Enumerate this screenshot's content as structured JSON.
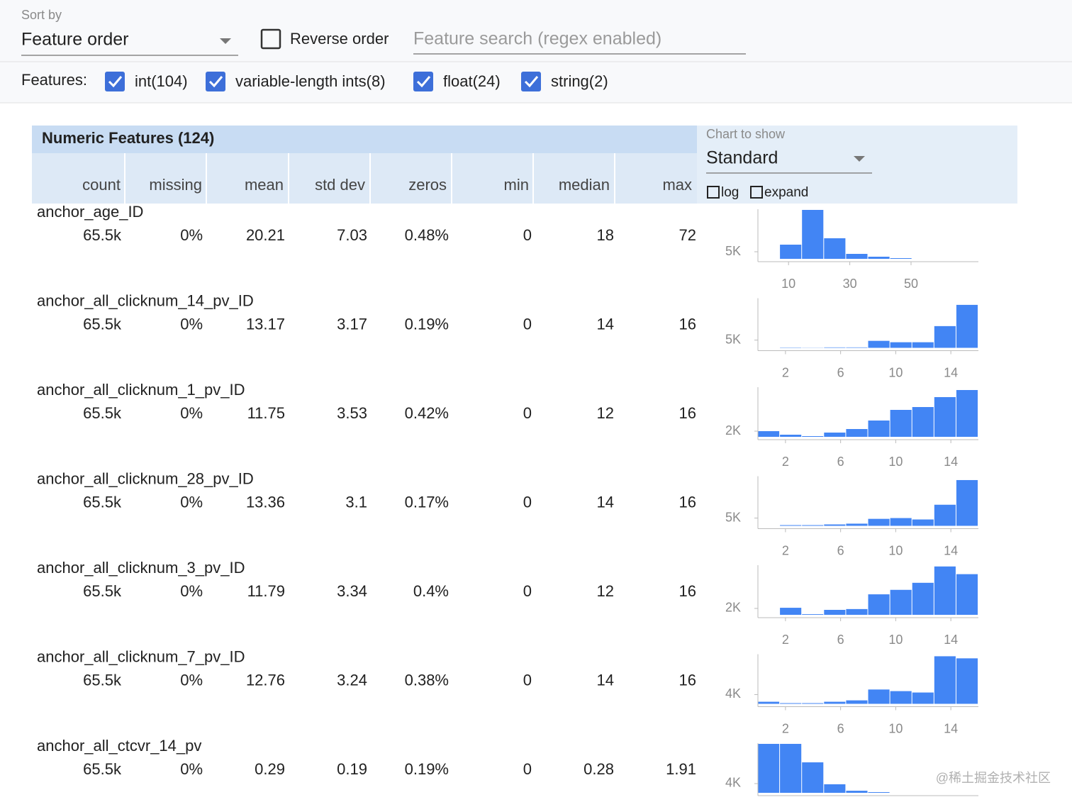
{
  "sort": {
    "label": "Sort by",
    "value": "Feature order"
  },
  "reverse_order": "Reverse order",
  "search_placeholder": "Feature search (regex enabled)",
  "features_label": "Features:",
  "feature_filters": [
    "int(104)",
    "variable-length ints(8)",
    "float(24)",
    "string(2)"
  ],
  "table": {
    "title": "Numeric Features (124)",
    "columns": [
      "count",
      "missing",
      "mean",
      "std dev",
      "zeros",
      "min",
      "median",
      "max"
    ],
    "chart_control": {
      "label": "Chart to show",
      "value": "Standard",
      "options": [
        "log",
        "expand"
      ]
    },
    "rows": [
      {
        "name": "anchor_age_ID",
        "stats": [
          "65.5k",
          "0%",
          "20.21",
          "7.03",
          "0.48%",
          "0",
          "18",
          "72"
        ],
        "histogram": {
          "type": "histogram",
          "xlim": [
            0,
            72
          ],
          "xticks": [
            10,
            30,
            50
          ],
          "ylim": [
            0,
            35000
          ],
          "yticks": [
            {
              "value": 5000,
              "label": "5K"
            }
          ],
          "counts": [
            0,
            10000,
            34500,
            14500,
            3500,
            1500,
            500,
            0,
            0,
            0
          ]
        }
      },
      {
        "name": "anchor_all_clicknum_14_pv_ID",
        "stats": [
          "65.5k",
          "0%",
          "13.17",
          "3.17",
          "0.19%",
          "0",
          "14",
          "16"
        ],
        "histogram": {
          "type": "histogram",
          "xlim": [
            0,
            16
          ],
          "xticks": [
            2,
            6,
            10,
            14
          ],
          "ylim": [
            0,
            32000
          ],
          "yticks": [
            {
              "value": 5000,
              "label": "5K"
            }
          ],
          "counts": [
            0,
            200,
            100,
            300,
            300,
            4500,
            3600,
            3600,
            14000,
            27700
          ]
        }
      },
      {
        "name": "anchor_all_clicknum_1_pv_ID",
        "stats": [
          "65.5k",
          "0%",
          "11.75",
          "3.53",
          "0.42%",
          "0",
          "12",
          "16"
        ],
        "histogram": {
          "type": "histogram",
          "xlim": [
            0,
            16
          ],
          "xticks": [
            2,
            6,
            10,
            14
          ],
          "ylim": [
            0,
            17500
          ],
          "yticks": [
            {
              "value": 2000,
              "label": "2K"
            }
          ],
          "counts": [
            2000,
            750,
            250,
            1500,
            2750,
            5750,
            9500,
            10500,
            14000,
            16500
          ]
        }
      },
      {
        "name": "anchor_all_clicknum_28_pv_ID",
        "stats": [
          "65.5k",
          "0%",
          "13.36",
          "3.1",
          "0.17%",
          "0",
          "14",
          "16"
        ],
        "histogram": {
          "type": "histogram",
          "xlim": [
            0,
            16
          ],
          "xticks": [
            2,
            6,
            10,
            14
          ],
          "ylim": [
            0,
            32000
          ],
          "yticks": [
            {
              "value": 5000,
              "label": "5K"
            }
          ],
          "counts": [
            0,
            455,
            455,
            900,
            1400,
            4500,
            5000,
            4100,
            13600,
            29500
          ]
        }
      },
      {
        "name": "anchor_all_clicknum_3_pv_ID",
        "stats": [
          "65.5k",
          "0%",
          "11.79",
          "3.34",
          "0.4%",
          "0",
          "12",
          "16"
        ],
        "histogram": {
          "type": "histogram",
          "xlim": [
            0,
            16
          ],
          "xticks": [
            2,
            6,
            10,
            14
          ],
          "ylim": [
            0,
            15500
          ],
          "yticks": [
            {
              "value": 2000,
              "label": "2K"
            }
          ],
          "counts": [
            0,
            2200,
            200,
            1550,
            1800,
            6400,
            7800,
            10000,
            15100,
            12700
          ]
        }
      },
      {
        "name": "anchor_all_clicknum_7_pv_ID",
        "stats": [
          "65.5k",
          "0%",
          "12.76",
          "3.24",
          "0.38%",
          "0",
          "14",
          "16"
        ],
        "histogram": {
          "type": "histogram",
          "xlim": [
            0,
            16
          ],
          "xticks": [
            2,
            6,
            10,
            14
          ],
          "ylim": [
            0,
            21500
          ],
          "yticks": [
            {
              "value": 4000,
              "label": "4K"
            }
          ],
          "counts": [
            900,
            300,
            300,
            900,
            1500,
            6200,
            5500,
            4900,
            20600,
            19700
          ]
        }
      },
      {
        "name": "anchor_all_ctcvr_14_pv",
        "stats": [
          "65.5k",
          "0%",
          "0.29",
          "0.19",
          "0.19%",
          "0",
          "0.28",
          "1.91"
        ],
        "histogram": {
          "type": "histogram",
          "xlim": [
            0,
            1.91
          ],
          "ylim": [
            0,
            21500
          ],
          "yticks": [
            {
              "value": 4000,
              "label": "4K"
            }
          ],
          "counts": [
            21200,
            21200,
            13200,
            3700,
            900,
            300,
            0,
            0,
            0,
            0
          ]
        }
      }
    ]
  },
  "watermark": "@稀土掘金技术社区"
}
